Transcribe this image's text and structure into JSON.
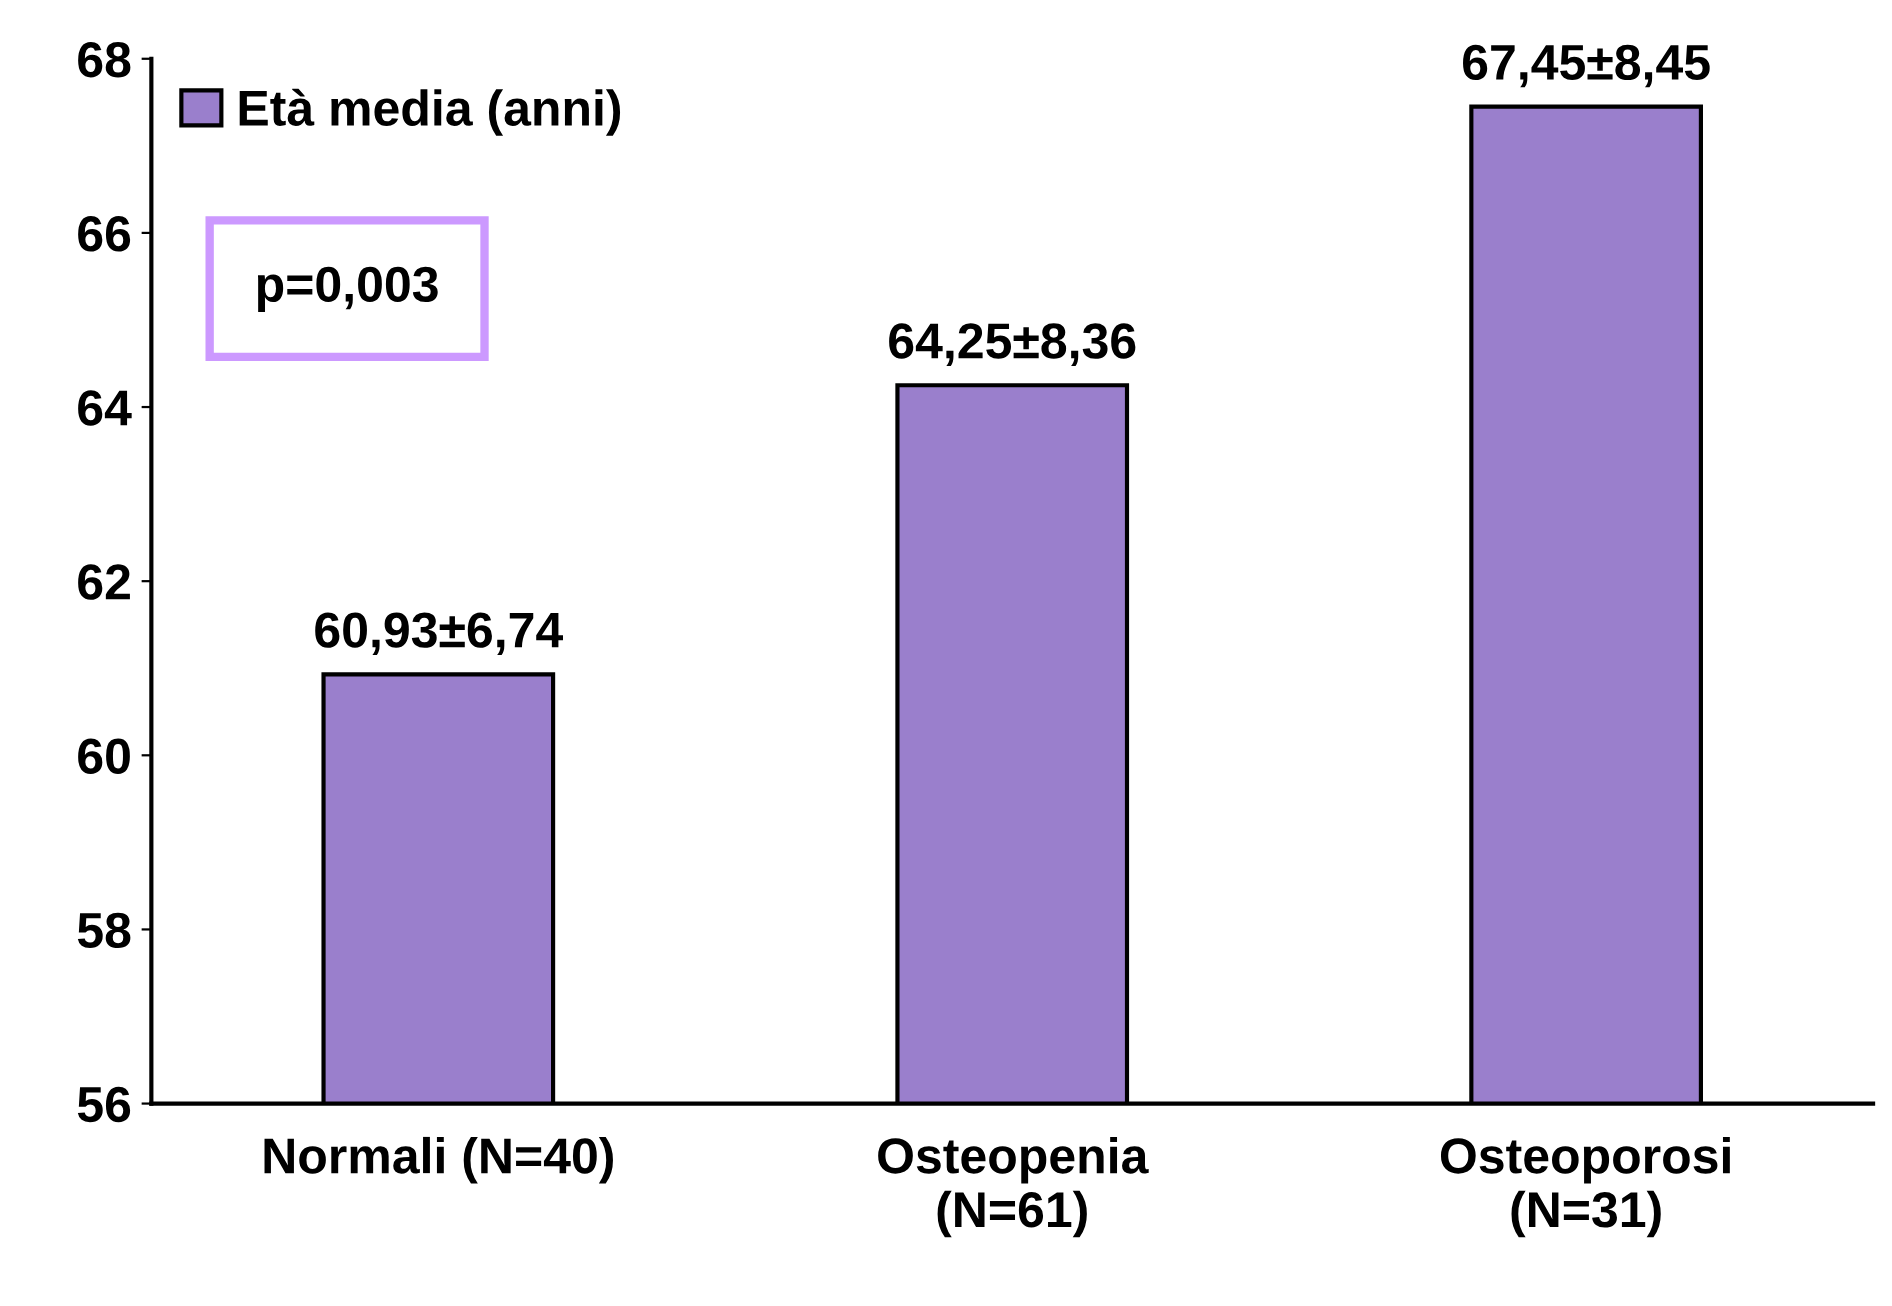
{
  "chart_data": {
    "type": "bar",
    "categories": [
      "Normali (N=40)",
      "Osteopenia\n(N=61)",
      "Osteoporosi\n(N=31)"
    ],
    "series": [
      {
        "name": "Età media (anni)",
        "color": "#9a7fcc",
        "values": [
          60.93,
          64.25,
          67.45
        ],
        "value_labels": [
          "60,93±6,74",
          "64,25±8,36",
          "67,45±8,45"
        ]
      }
    ],
    "ylim": [
      56,
      68
    ],
    "yticks": [
      56,
      58,
      60,
      62,
      64,
      66,
      68
    ],
    "annotations": [
      "p=0,003"
    ],
    "legend": "top left",
    "grid": false
  }
}
